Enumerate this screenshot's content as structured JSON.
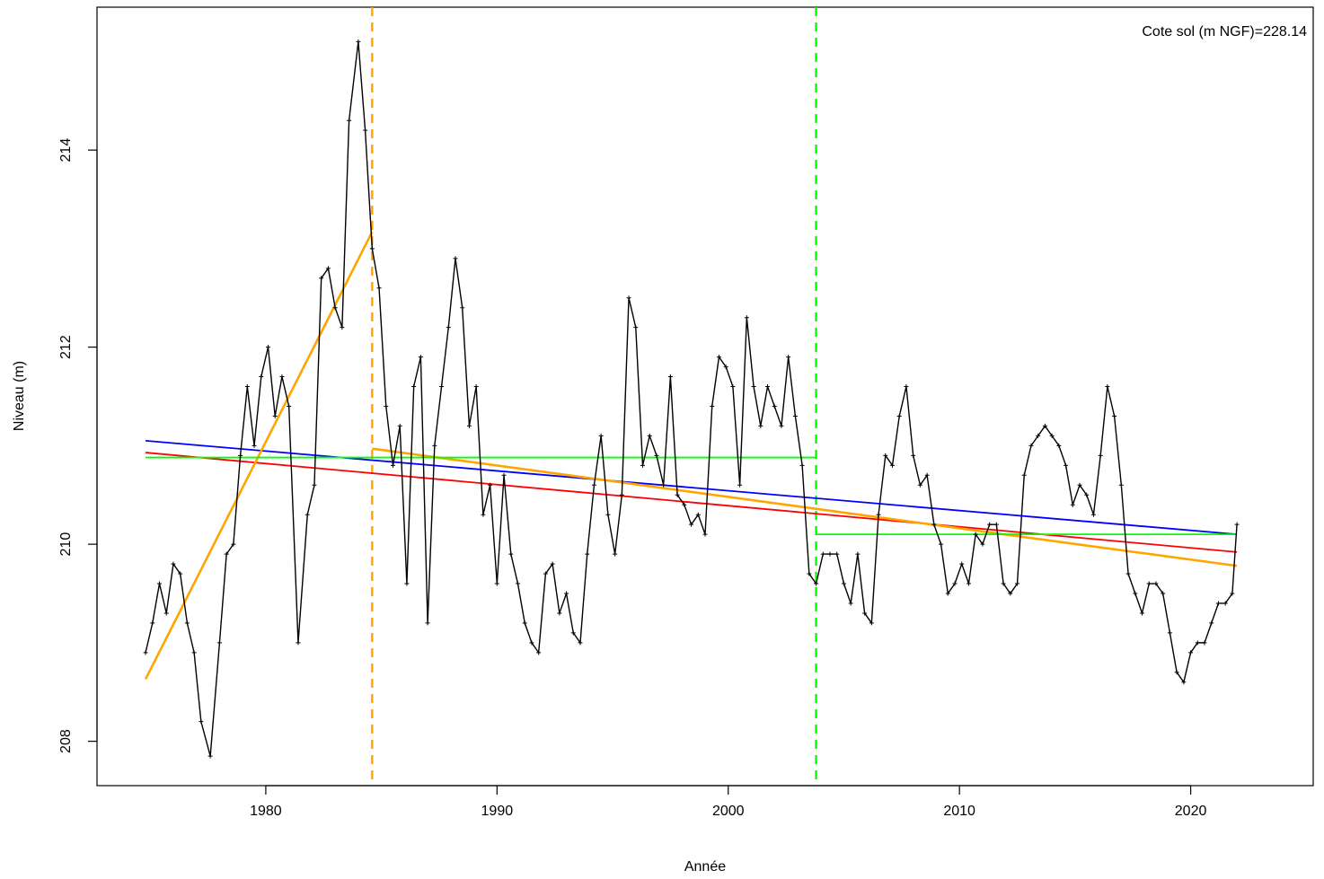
{
  "chart_data": {
    "type": "line",
    "xlabel": "Année",
    "ylabel": "Niveau (m)",
    "annotation": "Cote sol (m NGF)=228.14",
    "xlim": [
      1972.7,
      2025.3
    ],
    "ylim": [
      207.55,
      215.45
    ],
    "x_ticks": [
      1980,
      1990,
      2000,
      2010,
      2020
    ],
    "y_ticks": [
      208,
      210,
      212,
      214
    ],
    "grid": false,
    "series": [
      {
        "role": "observations",
        "color": "#000000",
        "marker": "plus",
        "x": [
          1974.8,
          1975.1,
          1975.4,
          1975.7,
          1976.0,
          1976.3,
          1976.6,
          1976.9,
          1977.2,
          1977.6,
          1978.0,
          1978.3,
          1978.6,
          1978.9,
          1979.2,
          1979.5,
          1979.8,
          1980.1,
          1980.4,
          1980.7,
          1981.0,
          1981.4,
          1981.8,
          1982.1,
          1982.4,
          1982.7,
          1983.0,
          1983.3,
          1983.6,
          1984.0,
          1984.3,
          1984.6,
          1984.9,
          1985.2,
          1985.5,
          1985.8,
          1986.1,
          1986.4,
          1986.7,
          1987.0,
          1987.3,
          1987.6,
          1987.9,
          1988.2,
          1988.5,
          1988.8,
          1989.1,
          1989.4,
          1989.7,
          1990.0,
          1990.3,
          1990.6,
          1990.9,
          1991.2,
          1991.5,
          1991.8,
          1992.1,
          1992.4,
          1992.7,
          1993.0,
          1993.3,
          1993.6,
          1993.9,
          1994.2,
          1994.5,
          1994.8,
          1995.1,
          1995.4,
          1995.7,
          1996.0,
          1996.3,
          1996.6,
          1996.9,
          1997.2,
          1997.5,
          1997.8,
          1998.1,
          1998.4,
          1998.7,
          1999.0,
          1999.3,
          1999.6,
          1999.9,
          2000.2,
          2000.5,
          2000.8,
          2001.1,
          2001.4,
          2001.7,
          2002.0,
          2002.3,
          2002.6,
          2002.9,
          2003.2,
          2003.5,
          2003.8,
          2004.1,
          2004.4,
          2004.7,
          2005.0,
          2005.3,
          2005.6,
          2005.9,
          2006.2,
          2006.5,
          2006.8,
          2007.1,
          2007.4,
          2007.7,
          2008.0,
          2008.3,
          2008.6,
          2008.9,
          2009.2,
          2009.5,
          2009.8,
          2010.1,
          2010.4,
          2010.7,
          2011.0,
          2011.3,
          2011.6,
          2011.9,
          2012.2,
          2012.5,
          2012.8,
          2013.1,
          2013.4,
          2013.7,
          2014.0,
          2014.3,
          2014.6,
          2014.9,
          2015.2,
          2015.5,
          2015.8,
          2016.1,
          2016.4,
          2016.7,
          2017.0,
          2017.3,
          2017.6,
          2017.9,
          2018.2,
          2018.5,
          2018.8,
          2019.1,
          2019.4,
          2019.7,
          2020.0,
          2020.3,
          2020.6,
          2020.9,
          2021.2,
          2021.5,
          2021.8,
          2022.0
        ],
        "y": [
          208.9,
          209.2,
          209.6,
          209.3,
          209.8,
          209.7,
          209.2,
          208.9,
          208.2,
          207.85,
          209.0,
          209.9,
          210.0,
          210.9,
          211.6,
          211.0,
          211.7,
          212.0,
          211.3,
          211.7,
          211.4,
          209.0,
          210.3,
          210.6,
          212.7,
          212.8,
          212.4,
          212.2,
          214.3,
          215.1,
          214.2,
          213.0,
          212.6,
          211.4,
          210.8,
          211.2,
          209.6,
          211.6,
          211.9,
          209.2,
          211.0,
          211.6,
          212.2,
          212.9,
          212.4,
          211.2,
          211.6,
          210.3,
          210.6,
          209.6,
          210.7,
          209.9,
          209.6,
          209.2,
          209.0,
          208.9,
          209.7,
          209.8,
          209.3,
          209.5,
          209.1,
          209.0,
          209.9,
          210.6,
          211.1,
          210.3,
          209.9,
          210.5,
          212.5,
          212.2,
          210.8,
          211.1,
          210.9,
          210.6,
          211.7,
          210.5,
          210.4,
          210.2,
          210.3,
          210.1,
          211.4,
          211.9,
          211.8,
          211.6,
          210.6,
          212.3,
          211.6,
          211.2,
          211.6,
          211.4,
          211.2,
          211.9,
          211.3,
          210.8,
          209.7,
          209.6,
          209.9,
          209.9,
          209.9,
          209.6,
          209.4,
          209.9,
          209.3,
          209.2,
          210.3,
          210.9,
          210.8,
          211.3,
          211.6,
          210.9,
          210.6,
          210.7,
          210.2,
          210.0,
          209.5,
          209.6,
          209.8,
          209.6,
          210.1,
          210.0,
          210.2,
          210.2,
          209.6,
          209.5,
          209.6,
          210.7,
          211.0,
          211.1,
          211.2,
          211.1,
          211.0,
          210.8,
          210.4,
          210.6,
          210.5,
          210.3,
          210.9,
          211.6,
          211.3,
          210.6,
          209.7,
          209.5,
          209.3,
          209.6,
          209.6,
          209.5,
          209.1,
          208.7,
          208.6,
          208.9,
          209.0,
          209.0,
          209.2,
          209.4,
          209.4,
          209.5,
          210.2
        ]
      },
      {
        "role": "trend-blue",
        "color": "#0000ff",
        "x": [
          1974.8,
          2022.0
        ],
        "y": [
          211.05,
          210.1
        ]
      },
      {
        "role": "trend-red",
        "color": "#ff0000",
        "x": [
          1974.8,
          2022.0
        ],
        "y": [
          210.93,
          209.92
        ]
      },
      {
        "role": "segment-orange-1",
        "color": "#ffa500",
        "x": [
          1974.8,
          1984.6
        ],
        "y": [
          208.63,
          213.17
        ]
      },
      {
        "role": "segment-orange-2",
        "color": "#ffa500",
        "x": [
          1984.6,
          2022.0
        ],
        "y": [
          210.97,
          209.78
        ]
      },
      {
        "role": "mean-green-1",
        "color": "#00ff00",
        "x": [
          1974.8,
          2003.8
        ],
        "y": [
          210.88,
          210.88
        ]
      },
      {
        "role": "mean-green-2",
        "color": "#00ff00",
        "x": [
          2003.8,
          2022.0
        ],
        "y": [
          210.1,
          210.1
        ]
      }
    ],
    "vlines": [
      {
        "x": 1984.6,
        "color": "#ffa500",
        "style": "dashed"
      },
      {
        "x": 2003.8,
        "color": "#00ff00",
        "style": "dashed"
      }
    ]
  }
}
